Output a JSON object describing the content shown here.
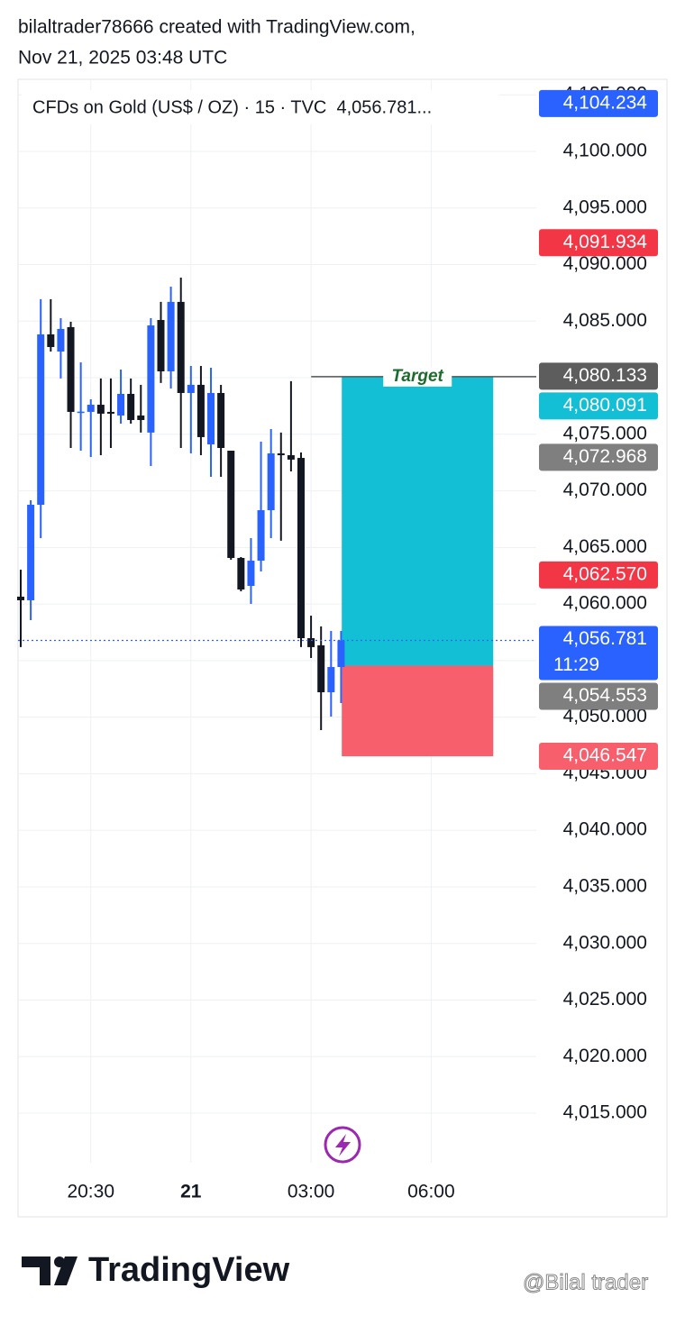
{
  "header": {
    "line1": "bilaltrader78666 created with TradingView.com,",
    "line2": "Nov 21, 2025 03:48 UTC"
  },
  "chart_data": {
    "type": "candlestick",
    "title": "CFDs on Gold (US$ / OZ) · 15 · TVC  4,056.781...",
    "up_color": "#2962ff",
    "down_color": "#131722",
    "grid": true,
    "x": [
      0,
      1,
      2,
      3,
      4,
      5,
      6,
      7,
      8,
      9,
      10,
      11,
      12,
      13,
      14,
      15,
      16,
      17,
      18,
      19,
      20,
      21,
      22,
      23,
      24,
      25,
      26,
      27,
      28,
      29,
      30,
      31,
      32
    ],
    "open": [
      4060.65,
      4060.33,
      4068.77,
      4083.83,
      4082.31,
      4084.47,
      4076.9,
      4076.98,
      4077.61,
      4076.98,
      4076.66,
      4078.57,
      4076.66,
      4075.15,
      4085.1,
      4080.56,
      4086.7,
      4078.65,
      4079.37,
      4074.11,
      4078.65,
      4073.55,
      4064.07,
      4061.6,
      4063.83,
      4068.29,
      4073.31,
      4073.15,
      4072.91,
      4056.98,
      4056.35,
      4052.2,
      4054.43
    ],
    "high": [
      4063.04,
      4069.17,
      4086.94,
      4086.94,
      4085.26,
      4084.94,
      4081.36,
      4078.09,
      4079.93,
      4079.93,
      4080.72,
      4079.93,
      4079.37,
      4085.26,
      4086.7,
      4088.05,
      4088.85,
      4081.04,
      4081.04,
      4080.88,
      4079.37,
      4073.55,
      4064.15,
      4065.82,
      4074.35,
      4075.46,
      4075.15,
      4079.69,
      4073.39,
      4058.97,
      4058.02,
      4057.62,
      4057.62
    ],
    "low": [
      4056.19,
      4058.57,
      4065.82,
      4082.31,
      4079.93,
      4073.79,
      4073.55,
      4072.99,
      4073.15,
      4073.79,
      4075.94,
      4075.94,
      4075.15,
      4072.2,
      4079.53,
      4079.05,
      4073.79,
      4073.31,
      4073.15,
      4071.24,
      4071.24,
      4063.91,
      4061.12,
      4060.01,
      4062.88,
      4065.82,
      4065.59,
      4071.72,
      4056.19,
      4055.23,
      4048.86,
      4050.05,
      4051.25
    ],
    "close": [
      4060.33,
      4068.77,
      4083.83,
      4082.71,
      4084.31,
      4076.98,
      4077.0,
      4077.61,
      4076.82,
      4076.82,
      4078.57,
      4076.26,
      4076.26,
      4084.62,
      4080.56,
      4086.7,
      4078.65,
      4079.37,
      4074.75,
      4078.65,
      4073.79,
      4064.07,
      4061.28,
      4063.83,
      4068.29,
      4073.31,
      4073.15,
      4072.76,
      4056.98,
      4056.19,
      4052.2,
      4054.43,
      4056.781
    ],
    "xlim": [
      -0.27,
      51.5
    ],
    "xticks": [
      {
        "value": 7,
        "label": "20:30"
      },
      {
        "value": 17,
        "label": "21"
      },
      {
        "value": 29,
        "label": "03:00"
      },
      {
        "value": 41,
        "label": "06:00"
      }
    ],
    "ylim": [
      4010.62,
      4106.37
    ],
    "yticks": [
      {
        "value": 4015,
        "label": "4,015.000"
      },
      {
        "value": 4020,
        "label": "4,020.000"
      },
      {
        "value": 4025,
        "label": "4,025.000"
      },
      {
        "value": 4030,
        "label": "4,030.000"
      },
      {
        "value": 4035,
        "label": "4,035.000"
      },
      {
        "value": 4040,
        "label": "4,040.000"
      },
      {
        "value": 4045,
        "label": "4,045.000"
      },
      {
        "value": 4050,
        "label": "4,050.000"
      },
      {
        "value": 4055,
        "label": "4,055.000"
      },
      {
        "value": 4060,
        "label": "4,060.000"
      },
      {
        "value": 4065,
        "label": "4,065.000"
      },
      {
        "value": 4070,
        "label": "4,070.000"
      },
      {
        "value": 4075,
        "label": "4,075.000"
      },
      {
        "value": 4080,
        "label": "4,080.000"
      },
      {
        "value": 4085,
        "label": "4,085.000"
      },
      {
        "value": 4090,
        "label": "4,090.000"
      },
      {
        "value": 4095,
        "label": "4,095.000"
      },
      {
        "value": 4100,
        "label": "4,100.000"
      },
      {
        "value": 4105,
        "label": "4,105.000"
      }
    ],
    "position": {
      "entry": 4054.553,
      "target": 4080.091,
      "stop": 4046.547,
      "x_start": 32.07,
      "x_end": 47.2,
      "target_label": "Target",
      "target_color": "#12bfd4",
      "stop_color": "#f75f6d"
    },
    "price_labels": [
      {
        "value": 4104.234,
        "label": "4,104.234",
        "color": "#2962ff"
      },
      {
        "value": 4091.934,
        "label": "4,091.934",
        "color": "#f23645"
      },
      {
        "value": 4080.133,
        "label": "4,080.133",
        "color": "#5d5d5d"
      },
      {
        "value": 4080.091,
        "label": "4,080.091",
        "color": "#12bfd4"
      },
      {
        "value": 4072.968,
        "label": "4,072.968",
        "color": "#7f7f7f"
      },
      {
        "value": 4062.57,
        "label": "4,062.570",
        "color": "#f23645"
      },
      {
        "value": 4056.781,
        "label": "4,056.781",
        "color": "#2962ff",
        "countdown": "11:29"
      },
      {
        "value": 4054.553,
        "label": "4,054.553",
        "color": "#7f7f7f"
      },
      {
        "value": 4046.547,
        "label": "4,046.547",
        "color": "#f75f6d"
      }
    ]
  },
  "footer": {
    "logo": "TradingView",
    "watermark": "@Bilal trader"
  }
}
